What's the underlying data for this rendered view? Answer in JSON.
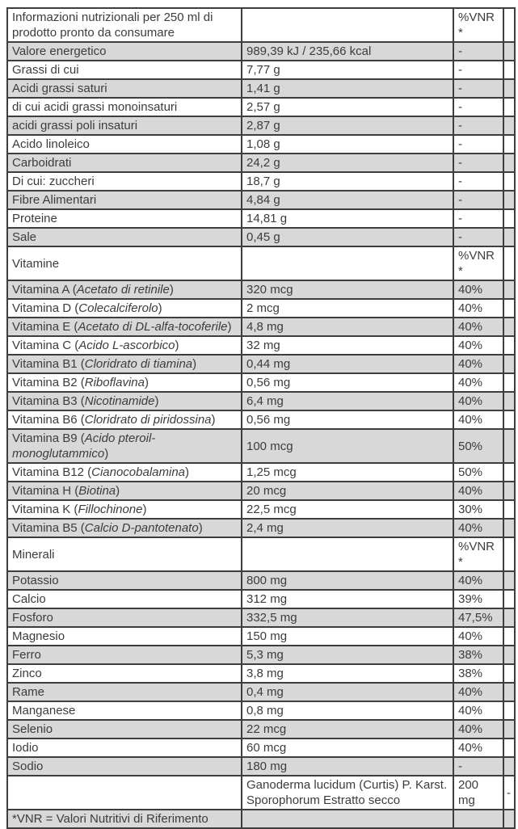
{
  "colors": {
    "row_shade": "#d8d8d8",
    "border": "#3e3e3e",
    "text": "#3c3c3c",
    "background": "#ffffff"
  },
  "table": {
    "footnote_marker": "*VNR",
    "rows": [
      {
        "kind": "header",
        "label": "Informazioni nutrizionali per 250 ml di prodotto pronto da consumare",
        "value": "",
        "vnr": "%VNR*",
        "extra": ""
      },
      {
        "kind": "nutrient",
        "label": "Valore energetico",
        "value": "989,39 kJ / 235,66 kcal",
        "vnr": "-",
        "extra": ""
      },
      {
        "kind": "nutrient",
        "label": "Grassi di cui",
        "value": "7,77 g",
        "vnr": "-",
        "extra": ""
      },
      {
        "kind": "nutrient",
        "label": "Acidi grassi saturi",
        "value": "1,41 g",
        "vnr": "-",
        "extra": ""
      },
      {
        "kind": "nutrient",
        "label": "di cui acidi grassi monoinsaturi",
        "value": "2,57 g",
        "vnr": "-",
        "extra": ""
      },
      {
        "kind": "nutrient",
        "label": "acidi grassi poli insaturi",
        "value": "2,87 g",
        "vnr": "-",
        "extra": ""
      },
      {
        "kind": "nutrient",
        "label": "Acido linoleico",
        "value": "1,08 g",
        "vnr": "-",
        "extra": ""
      },
      {
        "kind": "nutrient",
        "label": "Carboidrati",
        "value": "24,2 g",
        "vnr": "-",
        "extra": ""
      },
      {
        "kind": "nutrient",
        "label": "Di cui: zuccheri",
        "value": "18,7 g",
        "vnr": "-",
        "extra": ""
      },
      {
        "kind": "nutrient",
        "label": "Fibre Alimentari",
        "value": "4,84 g",
        "vnr": "-",
        "extra": ""
      },
      {
        "kind": "nutrient",
        "label": "Proteine",
        "value": "14,81 g",
        "vnr": "-",
        "extra": ""
      },
      {
        "kind": "nutrient",
        "label": "Sale",
        "value": "0,45 g",
        "vnr": "-",
        "extra": ""
      },
      {
        "kind": "section",
        "label": "Vitamine",
        "value": "",
        "vnr": "%VNR*",
        "extra": ""
      },
      {
        "kind": "nutrient",
        "label": "Vitamina A (",
        "label_italic": "Acetato di retinile",
        "label_close": ")",
        "value": "320 mcg",
        "vnr": "40%",
        "extra": ""
      },
      {
        "kind": "nutrient",
        "label": "Vitamina D (",
        "label_italic": "Colecalciferolo",
        "label_close": ")",
        "value": "2 mcg",
        "vnr": "40%",
        "extra": ""
      },
      {
        "kind": "nutrient",
        "label": "Vitamina E (",
        "label_italic": "Acetato di DL-alfa-tocoferile",
        "label_close": ")",
        "value": "4,8 mg",
        "vnr": "40%",
        "extra": ""
      },
      {
        "kind": "nutrient",
        "label": "Vitamina C (",
        "label_italic": "Acido L-ascorbico",
        "label_close": ")",
        "value": "32 mg",
        "vnr": "40%",
        "extra": ""
      },
      {
        "kind": "nutrient",
        "label": "Vitamina B1 (",
        "label_italic": "Cloridrato di tiamina",
        "label_close": ")",
        "value": "0,44 mg",
        "vnr": "40%",
        "extra": ""
      },
      {
        "kind": "nutrient",
        "label": "Vitamina B2 (",
        "label_italic": "Riboflavina",
        "label_close": ")",
        "value": "0,56 mg",
        "vnr": "40%",
        "extra": ""
      },
      {
        "kind": "nutrient",
        "label": "Vitamina B3 (",
        "label_italic": "Nicotinamide",
        "label_close": ")",
        "value": "6,4 mg",
        "vnr": "40%",
        "extra": ""
      },
      {
        "kind": "nutrient",
        "label": "Vitamina B6 (",
        "label_italic": "Cloridrato di piridossina",
        "label_close": ")",
        "value": "0,56 mg",
        "vnr": "40%",
        "extra": ""
      },
      {
        "kind": "nutrient",
        "label": "Vitamina B9 (",
        "label_italic": "Acido pteroil-monoglutammico",
        "label_close": ")",
        "value": "100 mcg",
        "vnr": "50%",
        "extra": ""
      },
      {
        "kind": "nutrient",
        "label": "Vitamina B12 (",
        "label_italic": "Cianocobalamina",
        "label_close": ")",
        "value": "1,25 mcg",
        "vnr": "50%",
        "extra": ""
      },
      {
        "kind": "nutrient",
        "label": "Vitamina H (",
        "label_italic": "Biotina",
        "label_close": ")",
        "value": "20 mcg",
        "vnr": "40%",
        "extra": ""
      },
      {
        "kind": "nutrient",
        "label": "Vitamina K (",
        "label_italic": "Fillochinone",
        "label_close": ")",
        "value": "22,5 mcg",
        "vnr": "30%",
        "extra": ""
      },
      {
        "kind": "nutrient",
        "label": "Vitamina B5 (",
        "label_italic": "Calcio D-pantotenato",
        "label_close": ")",
        "value": "2,4 mg",
        "vnr": "40%",
        "extra": ""
      },
      {
        "kind": "section",
        "label": "Minerali",
        "value": "",
        "vnr": "%VNR*",
        "extra": ""
      },
      {
        "kind": "nutrient",
        "label": "Potassio",
        "value": "800 mg",
        "vnr": "40%",
        "extra": ""
      },
      {
        "kind": "nutrient",
        "label": "Calcio",
        "value": "312 mg",
        "vnr": "39%",
        "extra": ""
      },
      {
        "kind": "nutrient",
        "label": "Fosforo",
        "value": "332,5 mg",
        "vnr": "47,5%",
        "extra": ""
      },
      {
        "kind": "nutrient",
        "label": "Magnesio",
        "value": "150 mg",
        "vnr": "40%",
        "extra": ""
      },
      {
        "kind": "nutrient",
        "label": "Ferro",
        "value": "5,3 mg",
        "vnr": "38%",
        "extra": ""
      },
      {
        "kind": "nutrient",
        "label": "Zinco",
        "value": "3,8 mg",
        "vnr": "38%",
        "extra": ""
      },
      {
        "kind": "nutrient",
        "label": "Rame",
        "value": "0,4 mg",
        "vnr": "40%",
        "extra": ""
      },
      {
        "kind": "nutrient",
        "label": "Manganese",
        "value": "0,8 mg",
        "vnr": "40%",
        "extra": ""
      },
      {
        "kind": "nutrient",
        "label": "Selenio",
        "value": "22 mcg",
        "vnr": "40%",
        "extra": ""
      },
      {
        "kind": "nutrient",
        "label": "Iodio",
        "value": "60 mcg",
        "vnr": "40%",
        "extra": ""
      },
      {
        "kind": "nutrient",
        "label": "Sodio",
        "value": "180 mg",
        "vnr": "-",
        "extra": ""
      },
      {
        "kind": "extract",
        "label": "",
        "value": "Ganoderma lucidum (Curtis) P. Karst. Sporophorum Estratto secco",
        "vnr": "200 mg",
        "extra": "-"
      },
      {
        "kind": "footnote",
        "label": "*VNR = Valori Nutritivi di Riferimento",
        "value": "",
        "vnr": "",
        "extra": ""
      }
    ]
  }
}
